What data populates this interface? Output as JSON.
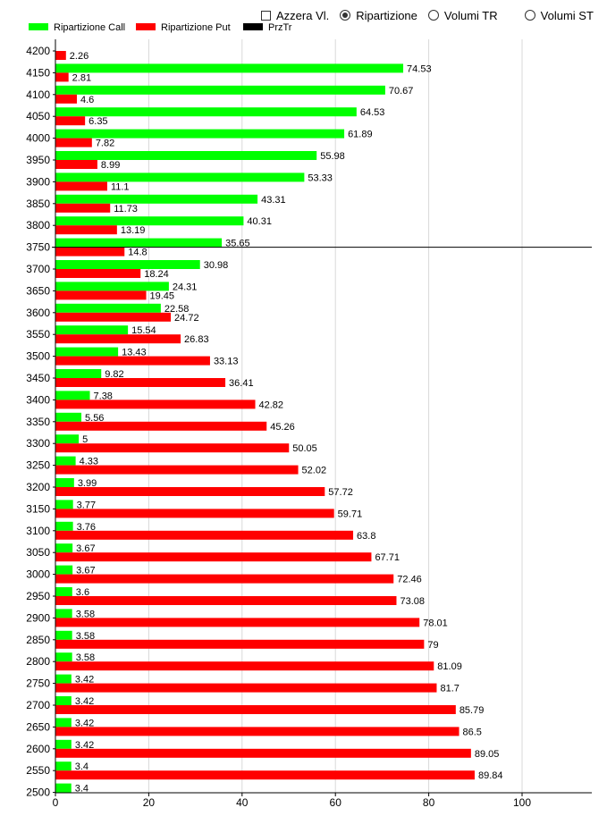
{
  "controls": {
    "azzera_label": "Azzera Vl.",
    "azzera_checked": false,
    "radios": [
      {
        "label": "Ripartizione",
        "selected": true
      },
      {
        "label": "Volumi TR",
        "selected": false
      },
      {
        "label": "Volumi ST",
        "selected": false
      }
    ]
  },
  "colors": {
    "call": "#00ff00",
    "put": "#ff0000",
    "prztr": "#000000",
    "grid": "#d9d9d9"
  },
  "chart_data": {
    "type": "bar",
    "orientation": "horizontal",
    "legend_position": "top-left",
    "grid": true,
    "categories": [
      "4200",
      "4150",
      "4100",
      "4050",
      "4000",
      "3950",
      "3900",
      "3850",
      "3800",
      "3750",
      "3700",
      "3650",
      "3600",
      "3550",
      "3500",
      "3450",
      "3400",
      "3350",
      "3300",
      "3250",
      "3200",
      "3150",
      "3100",
      "3050",
      "3000",
      "2950",
      "2900",
      "2850",
      "2800",
      "2750",
      "2700",
      "2650",
      "2600",
      "2550",
      "2500"
    ],
    "series": [
      {
        "name": "Ripartizione Call",
        "color": "#00ff00",
        "values": [
          null,
          74.53,
          70.67,
          64.53,
          61.89,
          55.98,
          53.33,
          43.31,
          40.31,
          35.65,
          30.98,
          24.31,
          22.58,
          15.54,
          13.43,
          9.82,
          7.38,
          5.56,
          5,
          4.33,
          3.99,
          3.77,
          3.76,
          3.67,
          3.67,
          3.6,
          3.58,
          3.58,
          3.58,
          3.42,
          3.42,
          3.42,
          3.42,
          3.4,
          3.4
        ]
      },
      {
        "name": "Ripartizione Put",
        "color": "#ff0000",
        "values": [
          2.26,
          2.81,
          4.6,
          6.35,
          7.82,
          8.99,
          11.1,
          11.73,
          13.19,
          14.8,
          18.24,
          19.45,
          24.72,
          26.83,
          33.13,
          36.41,
          42.82,
          45.26,
          50.05,
          52.02,
          57.72,
          59.71,
          63.8,
          67.71,
          72.46,
          73.08,
          78.01,
          79,
          81.09,
          81.7,
          85.79,
          86.5,
          89.05,
          89.84,
          null
        ]
      },
      {
        "name": "PrzTr",
        "color": "#000000",
        "type": "line",
        "value": "3750"
      }
    ],
    "xlim": [
      0,
      115
    ],
    "xticks": [
      0,
      20,
      40,
      60,
      80,
      100
    ]
  }
}
